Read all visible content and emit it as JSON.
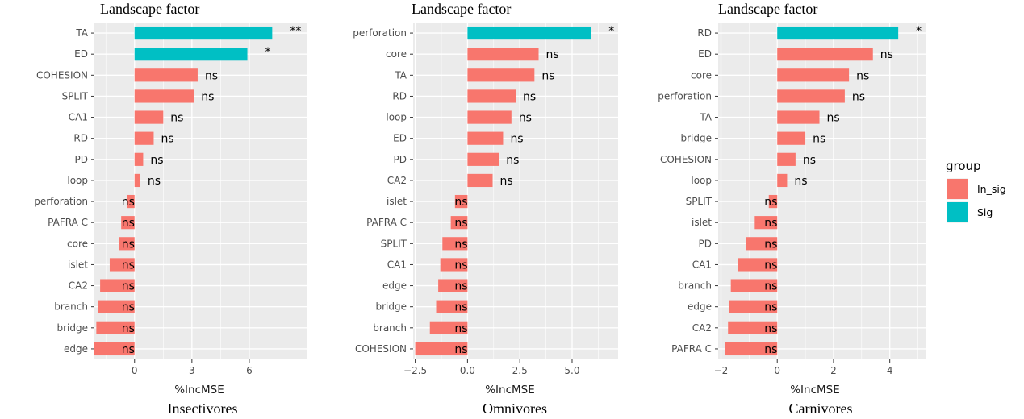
{
  "chart_data": [
    {
      "type": "bar",
      "orientation": "horizontal",
      "title": "Landscape factor",
      "xlabel": "%IncMSE",
      "caption": "Insectivores",
      "xlim": [
        -2.1,
        9.0
      ],
      "xticks": [
        0,
        3,
        6
      ],
      "xtick_labels": [
        "0",
        "3",
        "6"
      ],
      "grid": true,
      "categories": [
        "TA",
        "ED",
        "COHESION",
        "SPLIT",
        "CA1",
        "RD",
        "PD",
        "loop",
        "perforation",
        "PAFRA C",
        "core",
        "islet",
        "CA2",
        "branch",
        "bridge",
        "edge"
      ],
      "values": [
        7.2,
        5.9,
        3.3,
        3.1,
        1.5,
        1.0,
        0.45,
        0.3,
        -0.4,
        -0.7,
        -0.8,
        -1.3,
        -1.8,
        -1.9,
        -2.0,
        -2.1
      ],
      "groups": [
        "Sig",
        "Sig",
        "In_sig",
        "In_sig",
        "In_sig",
        "In_sig",
        "In_sig",
        "In_sig",
        "In_sig",
        "In_sig",
        "In_sig",
        "In_sig",
        "In_sig",
        "In_sig",
        "In_sig",
        "In_sig"
      ],
      "labels": [
        "**",
        "*",
        "ns",
        "ns",
        "ns",
        "ns",
        "ns",
        "ns",
        "ns",
        "ns",
        "ns",
        "ns",
        "ns",
        "ns",
        "ns",
        "ns"
      ]
    },
    {
      "type": "bar",
      "orientation": "horizontal",
      "title": "Landscape factor",
      "xlabel": "%IncMSE",
      "caption": "Omnivores",
      "xlim": [
        -2.6,
        7.2
      ],
      "xticks": [
        -2.5,
        0.0,
        2.5,
        5.0
      ],
      "xtick_labels": [
        "−2.5",
        "0.0",
        "2.5",
        "5.0"
      ],
      "grid": true,
      "categories": [
        "perforation",
        "core",
        "TA",
        "RD",
        "loop",
        "ED",
        "PD",
        "CA2",
        "islet",
        "PAFRA C",
        "SPLIT",
        "CA1",
        "edge",
        "bridge",
        "branch",
        "COHESION"
      ],
      "values": [
        5.9,
        3.4,
        3.2,
        2.3,
        2.1,
        1.7,
        1.5,
        1.2,
        -0.6,
        -0.8,
        -1.2,
        -1.3,
        -1.4,
        -1.5,
        -1.8,
        -2.5
      ],
      "groups": [
        "Sig",
        "In_sig",
        "In_sig",
        "In_sig",
        "In_sig",
        "In_sig",
        "In_sig",
        "In_sig",
        "In_sig",
        "In_sig",
        "In_sig",
        "In_sig",
        "In_sig",
        "In_sig",
        "In_sig",
        "In_sig"
      ],
      "labels": [
        "*",
        "ns",
        "ns",
        "ns",
        "ns",
        "ns",
        "ns",
        "ns",
        "ns",
        "ns",
        "ns",
        "ns",
        "ns",
        "ns",
        "ns",
        "ns"
      ]
    },
    {
      "type": "bar",
      "orientation": "horizontal",
      "title": "Landscape factor",
      "xlabel": "%IncMSE",
      "caption": "Carnivores",
      "xlim": [
        -2.1,
        5.3
      ],
      "xticks": [
        -2,
        0,
        2,
        4
      ],
      "xtick_labels": [
        "−2",
        "0",
        "2",
        "4"
      ],
      "grid": true,
      "categories": [
        "RD",
        "ED",
        "core",
        "perforation",
        "TA",
        "bridge",
        "COHESION",
        "loop",
        "SPLIT",
        "islet",
        "PD",
        "CA1",
        "branch",
        "edge",
        "CA2",
        "PAFRA C"
      ],
      "values": [
        4.3,
        3.4,
        2.55,
        2.4,
        1.5,
        1.0,
        0.65,
        0.35,
        -0.3,
        -0.8,
        -1.1,
        -1.4,
        -1.65,
        -1.7,
        -1.75,
        -1.85
      ],
      "groups": [
        "Sig",
        "In_sig",
        "In_sig",
        "In_sig",
        "In_sig",
        "In_sig",
        "In_sig",
        "In_sig",
        "In_sig",
        "In_sig",
        "In_sig",
        "In_sig",
        "In_sig",
        "In_sig",
        "In_sig",
        "In_sig"
      ],
      "labels": [
        "*",
        "ns",
        "ns",
        "ns",
        "ns",
        "ns",
        "ns",
        "ns",
        "ns",
        "ns",
        "ns",
        "ns",
        "ns",
        "ns",
        "ns",
        "ns"
      ]
    }
  ],
  "legend": {
    "title": "group",
    "placement": "right",
    "items": [
      {
        "label": "In_sig",
        "color": "#f8766d"
      },
      {
        "label": "Sig",
        "color": "#00bfc4"
      }
    ]
  },
  "colors": {
    "In_sig": "#f8766d",
    "Sig": "#00bfc4",
    "panel_background": "#ebebeb",
    "grid": "#ffffff"
  }
}
